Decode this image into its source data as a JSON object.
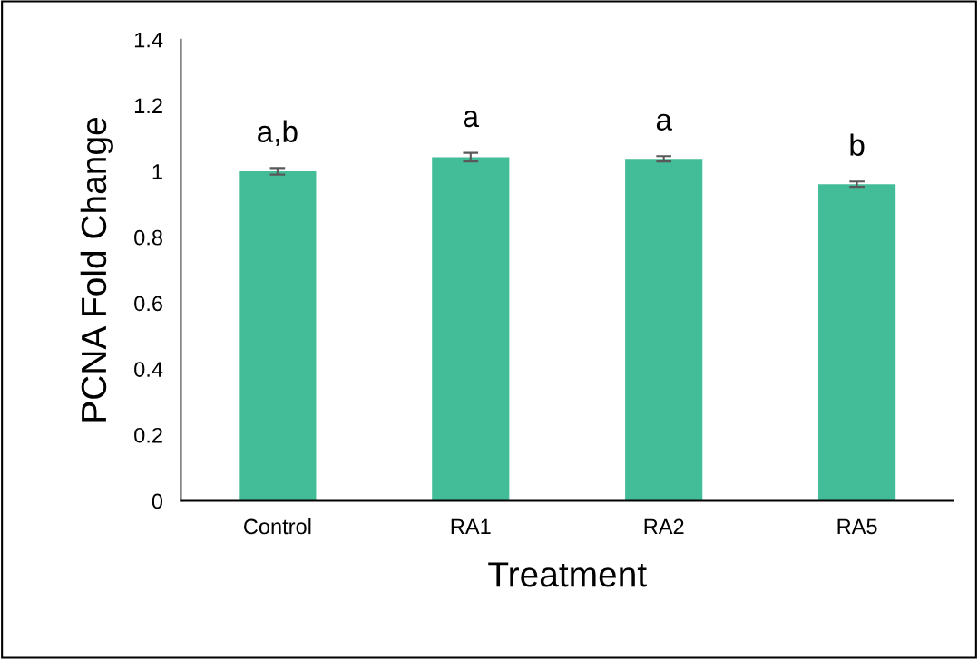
{
  "chart_data": {
    "type": "bar",
    "xlabel": "Treatment",
    "ylabel": "PCNA Fold Change",
    "categories": [
      "Control",
      "RA1",
      "RA2",
      "RA5"
    ],
    "values": [
      1.0,
      1.043,
      1.038,
      0.961
    ],
    "errors": [
      0.01,
      0.013,
      0.008,
      0.008
    ],
    "color": "#43bc98",
    "ylim": [
      0,
      1.4
    ],
    "yticks": [
      0,
      0.2,
      0.4,
      0.6,
      0.8,
      1,
      1.2,
      1.4
    ],
    "grid": false,
    "legend": false,
    "annotations": [
      "a,b",
      "a",
      "a",
      "b"
    ]
  }
}
